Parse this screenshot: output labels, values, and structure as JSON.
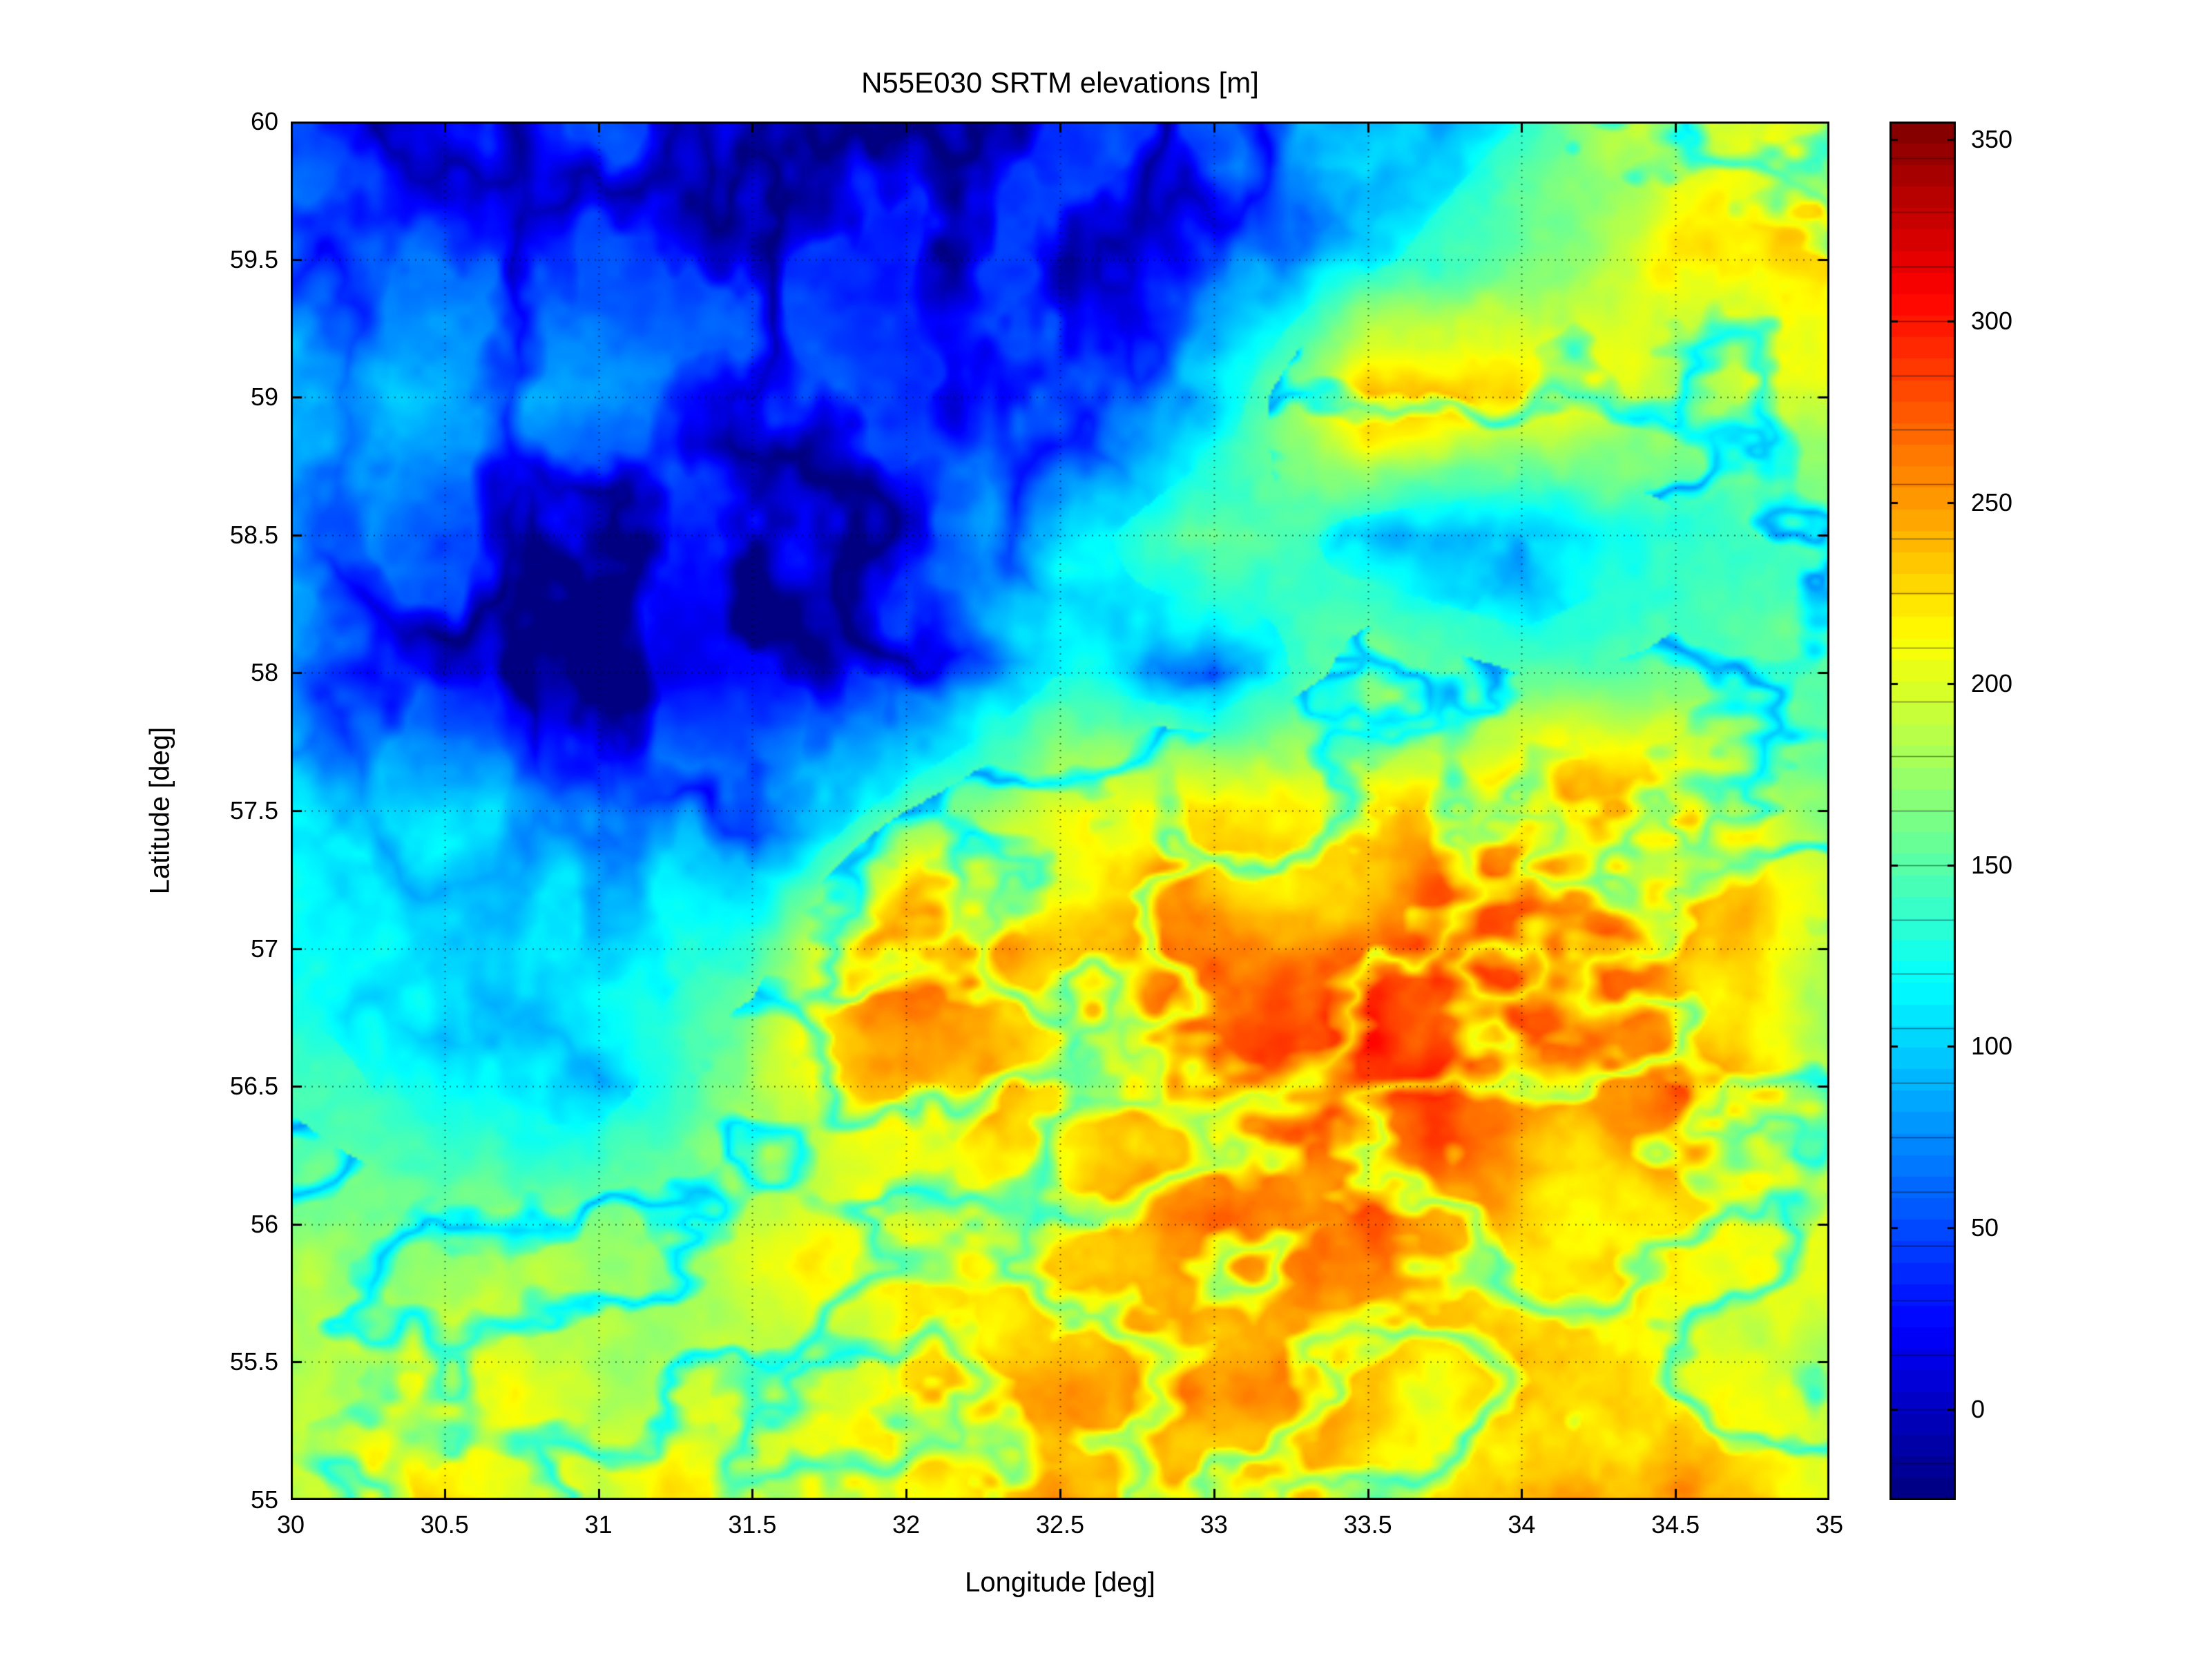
{
  "figure": {
    "background_color": "#ffffff",
    "axis_color": "#000000"
  },
  "chart_data": {
    "type": "heatmap",
    "title": "N55E030 SRTM elevations [m]",
    "xlabel": "Longitude [deg]",
    "ylabel": "Latitude [deg]",
    "xlim": [
      30,
      35
    ],
    "ylim": [
      55,
      60
    ],
    "grid": true,
    "colormap": "jet",
    "vmin": -25,
    "vmax": 355,
    "xticks": [
      30,
      30.5,
      31,
      31.5,
      32,
      32.5,
      33,
      33.5,
      34,
      34.5,
      35
    ],
    "xtick_labels": [
      "30",
      "30.5",
      "31",
      "31.5",
      "32",
      "32.5",
      "33",
      "33.5",
      "34",
      "34.5",
      "35"
    ],
    "yticks": [
      55,
      55.5,
      56,
      56.5,
      57,
      57.5,
      58,
      58.5,
      59,
      59.5,
      60
    ],
    "ytick_labels": [
      "55",
      "55.5",
      "56",
      "56.5",
      "57",
      "57.5",
      "58",
      "58.5",
      "59",
      "59.5",
      "60"
    ],
    "colorbar_ticks": [
      0,
      50,
      100,
      150,
      200,
      250,
      300,
      350
    ],
    "colorbar_tick_labels": [
      "0",
      "50",
      "100",
      "150",
      "200",
      "250",
      "300",
      "350"
    ],
    "lat_values": [
      60,
      59.5,
      59,
      58.5,
      58,
      57.5,
      57,
      56.5,
      56,
      55.5,
      55
    ],
    "lon_values": [
      30,
      30.5,
      31,
      31.5,
      32,
      32.5,
      33,
      33.5,
      34,
      34.5,
      35
    ],
    "elevation_grid_m": [
      [
        55,
        45,
        50,
        40,
        30,
        35,
        50,
        90,
        130,
        200,
        230
      ],
      [
        80,
        65,
        55,
        45,
        35,
        45,
        70,
        120,
        170,
        200,
        205
      ],
      [
        105,
        95,
        75,
        55,
        45,
        55,
        100,
        240,
        210,
        190,
        180
      ],
      [
        95,
        55,
        35,
        28,
        40,
        110,
        170,
        110,
        90,
        140,
        160
      ],
      [
        85,
        30,
        18,
        20,
        55,
        130,
        90,
        170,
        150,
        155,
        160
      ],
      [
        110,
        108,
        95,
        70,
        150,
        205,
        230,
        240,
        245,
        225,
        170
      ],
      [
        118,
        112,
        115,
        130,
        265,
        235,
        240,
        250,
        300,
        275,
        185
      ],
      [
        145,
        115,
        112,
        185,
        240,
        230,
        260,
        295,
        270,
        265,
        200
      ],
      [
        170,
        160,
        180,
        190,
        200,
        215,
        245,
        260,
        235,
        210,
        200
      ],
      [
        185,
        205,
        170,
        185,
        210,
        245,
        225,
        235,
        250,
        235,
        190
      ],
      [
        190,
        225,
        195,
        205,
        235,
        250,
        235,
        215,
        260,
        245,
        200
      ]
    ]
  }
}
